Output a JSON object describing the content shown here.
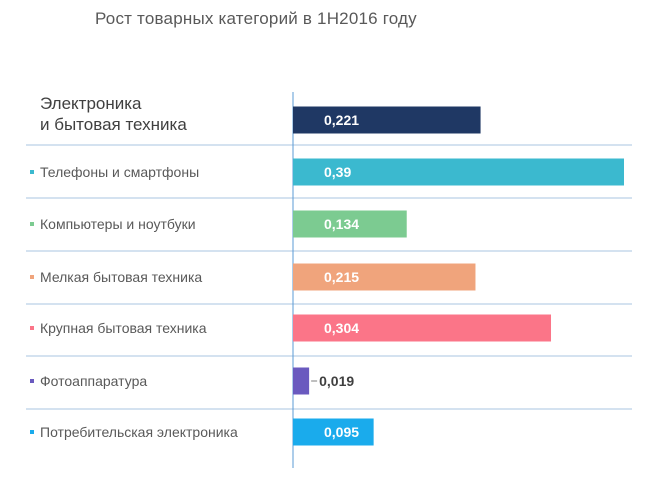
{
  "chart_data": {
    "type": "bar",
    "orientation": "horizontal",
    "title": "Рост товарных категорий в 1Н2016 году",
    "xlabel": "",
    "ylabel": "",
    "xlim": [
      0,
      0.4
    ],
    "grid": false,
    "legend": "none",
    "categories": [
      "Электроника и бытовая техника",
      "Телефоны и смартфоны",
      "Компьютеры и ноутбуки",
      "Мелкая бытовая техника",
      "Крупная бытовая техника",
      "Фотоаппаратура",
      "Потребительская электроника"
    ],
    "category_lines": [
      [
        "Электроника",
        "и бытовая техника"
      ],
      [
        "Телефоны  и  смартфоны"
      ],
      [
        "Компьютеры и ноутбуки"
      ],
      [
        "Мелкая  бытовая техника"
      ],
      [
        "Крупная  бытовая техника"
      ],
      [
        "Фотоаппаратура"
      ],
      [
        "Потребительская  электроника"
      ]
    ],
    "values": [
      0.221,
      0.39,
      0.134,
      0.215,
      0.304,
      0.019,
      0.095
    ],
    "value_labels": [
      "0,221",
      "0,39",
      "0,134",
      "0,215",
      "0,304",
      "0,019",
      "0,095"
    ],
    "colors": [
      "#1f3864",
      "#3bb9cf",
      "#7ccb91",
      "#f0a47c",
      "#fb7588",
      "#6a5abf",
      "#1aabec"
    ],
    "axis_color": "#5b9bd5",
    "divider_color": "#a9c4e0"
  }
}
